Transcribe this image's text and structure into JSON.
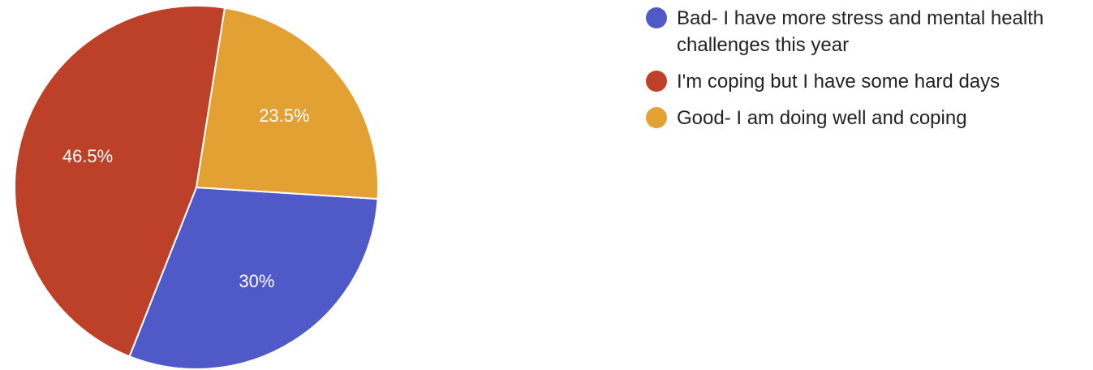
{
  "chart_data": {
    "type": "pie",
    "legend_position": "right",
    "slices": [
      {
        "label": "Bad- I have more stress and mental health challenges this year",
        "value": 30,
        "display": "30%",
        "color": "#5059C8"
      },
      {
        "label": "I'm coping but I have some hard days",
        "value": 46.5,
        "display": "46.5%",
        "color": "#BC4128"
      },
      {
        "label": "Good- I am doing well and coping",
        "value": 23.5,
        "display": "23.5%",
        "color": "#E4A133"
      }
    ]
  }
}
